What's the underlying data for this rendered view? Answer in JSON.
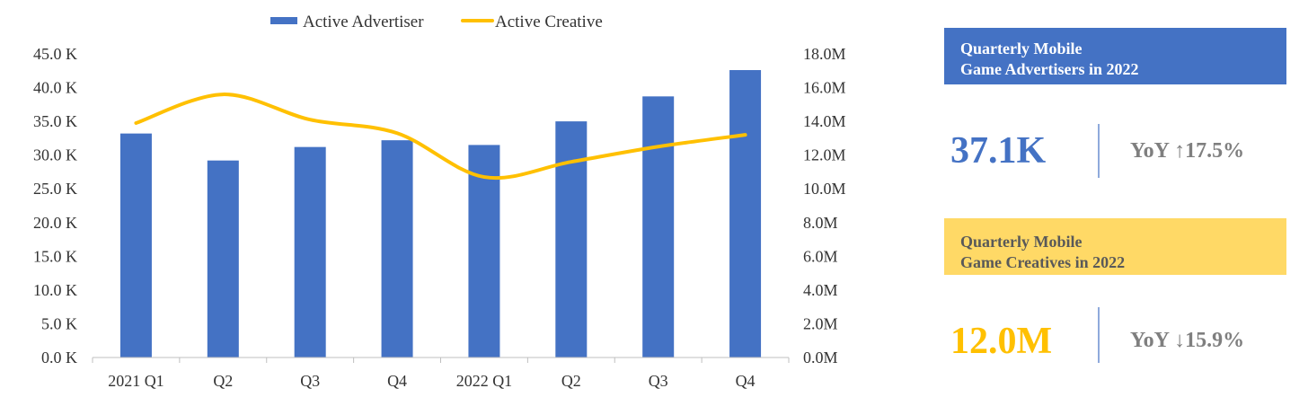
{
  "chart_data": {
    "type": "bar+line",
    "categories": [
      "2021 Q1",
      "Q2",
      "Q3",
      "Q4",
      "2022 Q1",
      "Q2",
      "Q3",
      "Q4"
    ],
    "series": [
      {
        "name": "Active Advertiser",
        "type": "bar",
        "axis": "left",
        "color": "#4472C4",
        "values": [
          33.2,
          29.2,
          31.2,
          32.2,
          31.5,
          35.0,
          38.7,
          42.6
        ]
      },
      {
        "name": "Active Creative",
        "type": "line",
        "axis": "right",
        "color": "#FFC000",
        "values": [
          13.9,
          15.6,
          14.1,
          13.3,
          10.7,
          11.6,
          12.5,
          13.2
        ]
      }
    ],
    "y_left": {
      "ylim": [
        0,
        45
      ],
      "ticks": [
        "0.0 K",
        "5.0 K",
        "10.0 K",
        "15.0 K",
        "20.0 K",
        "25.0 K",
        "30.0 K",
        "35.0 K",
        "40.0 K",
        "45.0 K"
      ]
    },
    "y_right": {
      "ylim": [
        0,
        18
      ],
      "ticks": [
        "0.0M",
        "2.0M",
        "4.0M",
        "6.0M",
        "8.0M",
        "10.0M",
        "12.0M",
        "14.0M",
        "16.0M",
        "18.0M"
      ]
    },
    "legend_position": "top-center"
  },
  "cards": [
    {
      "title_line1": "Quarterly Mobile",
      "title_line2": "Game Advertisers in 2022",
      "value": "37.1K",
      "yoy": "YoY ↑17.5%",
      "color": "#4472C4"
    },
    {
      "title_line1": "Quarterly Mobile",
      "title_line2": "Game Creatives in 2022",
      "value": "12.0M",
      "yoy": "YoY ↓15.9%",
      "color": "#FFC000"
    }
  ]
}
